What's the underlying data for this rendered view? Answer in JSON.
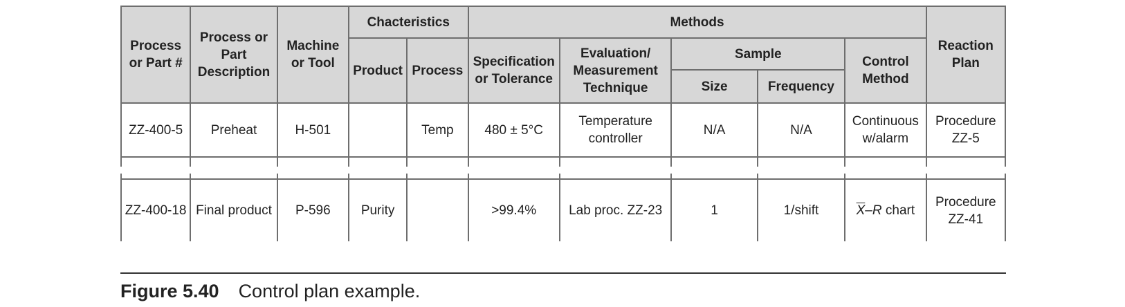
{
  "headers": {
    "part_no": "Process or Part #",
    "description": "Process or Part Description",
    "machine": "Machine or Tool",
    "characteristics": "Chacteristics",
    "product": "Product",
    "process": "Process",
    "methods": "Methods",
    "specification": "Specification or Tolerance",
    "evaluation": "Evaluation/ Measurement Technique",
    "sample": "Sample",
    "size": "Size",
    "frequency": "Frequency",
    "control_method": "Control Method",
    "reaction_plan": "Reaction Plan"
  },
  "rows": [
    {
      "part_no": "ZZ-400-5",
      "description": "Preheat",
      "machine": "H-501",
      "product": "",
      "process": "Temp",
      "specification": "480 ± 5°C",
      "evaluation": "Temperature controller",
      "size": "N/A",
      "frequency": "N/A",
      "control_method": "Continuous w/alarm",
      "reaction_plan": "Procedure ZZ-5"
    },
    {
      "part_no": "ZZ-400-18",
      "description": "Final product",
      "machine": "P-596",
      "product": "Purity",
      "process": "",
      "specification": ">99.4%",
      "evaluation": "Lab proc. ZZ-23",
      "size": "1",
      "frequency": "1/shift",
      "control_method_xbar": "X",
      "control_method_r": "R",
      "control_method_suffix": " chart",
      "reaction_plan": "Procedure ZZ-41"
    }
  ],
  "caption": {
    "figure": "Figure 5.40",
    "text": "Control plan example."
  }
}
